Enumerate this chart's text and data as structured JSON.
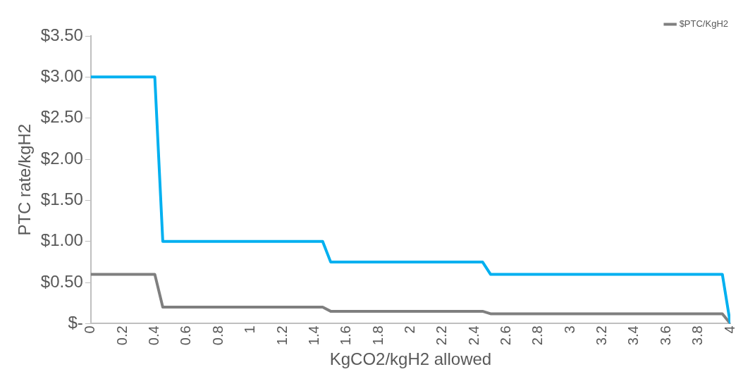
{
  "chart_data": {
    "type": "line",
    "ylabel": "PTC rate/kgH2",
    "xlabel": "KgCO2/kgH2 allowed",
    "xlim": [
      0,
      4
    ],
    "xticks": [
      0,
      0.2,
      0.4,
      0.6,
      0.8,
      1,
      1.2,
      1.4,
      1.6,
      1.8,
      2,
      2.2,
      2.4,
      2.6,
      2.8,
      3,
      3.2,
      3.4,
      3.6,
      3.8,
      4
    ],
    "ylim": [
      0,
      3.5
    ],
    "yticks": [
      {
        "value": 0,
        "label": "$-"
      },
      {
        "value": 0.5,
        "label": "$0.50"
      },
      {
        "value": 1,
        "label": "$1.00"
      },
      {
        "value": 1.5,
        "label": "$1.50"
      },
      {
        "value": 2,
        "label": "$2.00"
      },
      {
        "value": 2.5,
        "label": "$2.50"
      },
      {
        "value": 3,
        "label": "$3.00"
      },
      {
        "value": 3.5,
        "label": "$3.50"
      }
    ],
    "x": [
      0,
      0.4,
      0.45,
      1.45,
      1.5,
      2.45,
      2.5,
      3.95,
      4
    ],
    "series": [
      {
        "color": "#00b0f0",
        "values": [
          3,
          3,
          1,
          1,
          0.75,
          0.75,
          0.6,
          0.6,
          0
        ]
      },
      {
        "name": "$PTC/KgH2",
        "color": "#7f7f7f",
        "values": [
          0.6,
          0.6,
          0.2,
          0.2,
          0.15,
          0.15,
          0.12,
          0.12,
          0
        ]
      }
    ],
    "grid": false,
    "legend": "top right",
    "marker": "none",
    "line_style": "solid"
  }
}
